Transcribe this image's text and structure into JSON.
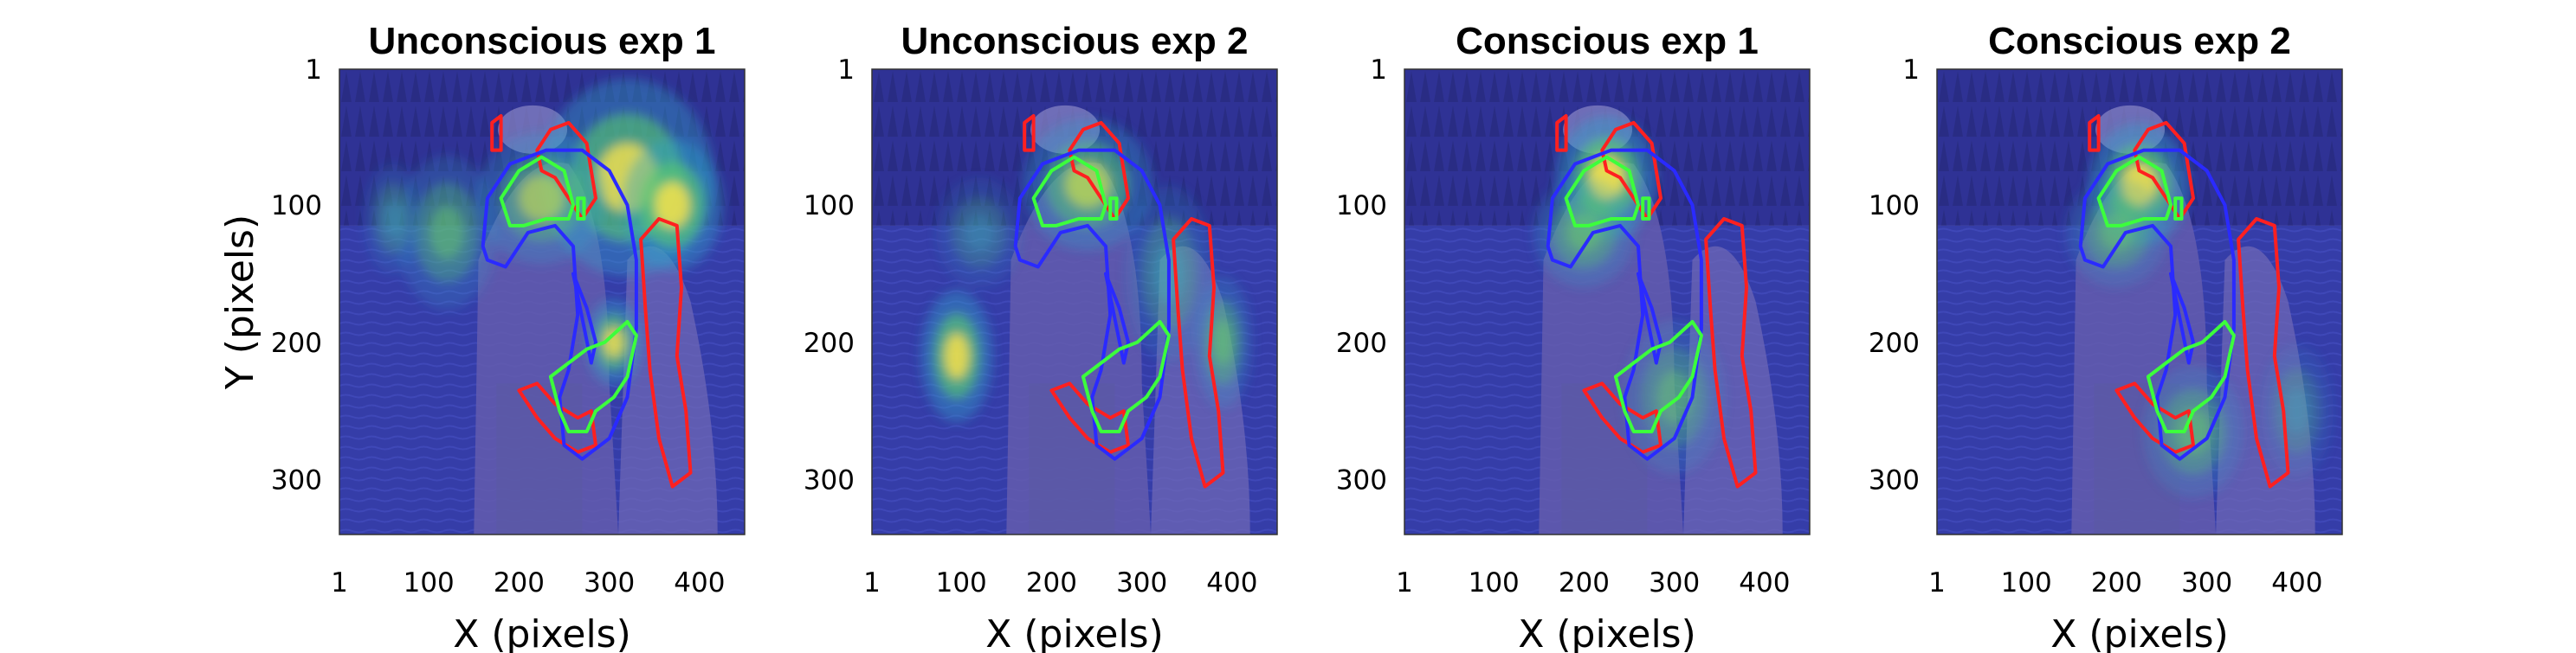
{
  "chart_data": {
    "type": "heatmap",
    "x_ticks": [
      "1",
      "100",
      "200",
      "300",
      "400"
    ],
    "y_ticks": [
      "1",
      "100",
      "200",
      "300"
    ],
    "xlim": [
      1,
      450
    ],
    "ylim": [
      1,
      340
    ],
    "xlabel": "X (pixels)",
    "ylabel": "Y (pixels)",
    "panels": [
      {
        "title": "Unconscious exp 1",
        "hotspots": [
          {
            "x": 320,
            "y": 80,
            "intensity": 0.85,
            "sx": 60,
            "sy": 45
          },
          {
            "x": 370,
            "y": 100,
            "intensity": 0.9,
            "sx": 35,
            "sy": 30
          },
          {
            "x": 225,
            "y": 95,
            "intensity": 0.6,
            "sx": 45,
            "sy": 30
          },
          {
            "x": 120,
            "y": 120,
            "intensity": 0.5,
            "sx": 35,
            "sy": 35
          },
          {
            "x": 305,
            "y": 200,
            "intensity": 0.85,
            "sx": 20,
            "sy": 20
          },
          {
            "x": 60,
            "y": 110,
            "intensity": 0.35,
            "sx": 20,
            "sy": 25
          }
        ]
      },
      {
        "title": "Unconscious exp 2",
        "hotspots": [
          {
            "x": 95,
            "y": 210,
            "intensity": 0.9,
            "sx": 25,
            "sy": 30
          },
          {
            "x": 240,
            "y": 85,
            "intensity": 0.7,
            "sx": 45,
            "sy": 30
          },
          {
            "x": 390,
            "y": 200,
            "intensity": 0.55,
            "sx": 20,
            "sy": 30
          },
          {
            "x": 330,
            "y": 150,
            "intensity": 0.4,
            "sx": 30,
            "sy": 40
          },
          {
            "x": 120,
            "y": 120,
            "intensity": 0.3,
            "sx": 30,
            "sy": 25
          }
        ]
      },
      {
        "title": "Conscious exp 1",
        "hotspots": [
          {
            "x": 225,
            "y": 80,
            "intensity": 0.95,
            "sx": 35,
            "sy": 28
          },
          {
            "x": 200,
            "y": 120,
            "intensity": 0.55,
            "sx": 35,
            "sy": 25
          },
          {
            "x": 300,
            "y": 240,
            "intensity": 0.45,
            "sx": 35,
            "sy": 35
          }
        ]
      },
      {
        "title": "Conscious exp 2",
        "hotspots": [
          {
            "x": 225,
            "y": 85,
            "intensity": 0.9,
            "sx": 35,
            "sy": 28
          },
          {
            "x": 200,
            "y": 120,
            "intensity": 0.5,
            "sx": 35,
            "sy": 25
          },
          {
            "x": 285,
            "y": 265,
            "intensity": 0.5,
            "sx": 35,
            "sy": 30
          },
          {
            "x": 400,
            "y": 250,
            "intensity": 0.3,
            "sx": 25,
            "sy": 30
          }
        ]
      }
    ],
    "contours": [
      {
        "color": "#ff2020",
        "points": [
          [
            170,
            50
          ],
          [
            170,
            40
          ],
          [
            180,
            35
          ],
          [
            180,
            60
          ],
          [
            170,
            60
          ]
        ]
      },
      {
        "color": "#ff2020",
        "points": [
          [
            220,
            60
          ],
          [
            235,
            45
          ],
          [
            255,
            40
          ],
          [
            275,
            55
          ],
          [
            285,
            95
          ],
          [
            270,
            110
          ],
          [
            255,
            95
          ],
          [
            240,
            80
          ],
          [
            225,
            75
          ]
        ]
      },
      {
        "color": "#ff2020",
        "points": [
          [
            335,
            125
          ],
          [
            355,
            110
          ],
          [
            375,
            115
          ],
          [
            380,
            160
          ],
          [
            375,
            210
          ],
          [
            385,
            250
          ],
          [
            390,
            295
          ],
          [
            370,
            305
          ],
          [
            355,
            270
          ],
          [
            345,
            220
          ],
          [
            340,
            175
          ]
        ]
      },
      {
        "color": "#ff2020",
        "points": [
          [
            200,
            235
          ],
          [
            220,
            230
          ],
          [
            240,
            245
          ],
          [
            265,
            255
          ],
          [
            280,
            250
          ],
          [
            285,
            275
          ],
          [
            265,
            280
          ],
          [
            240,
            270
          ],
          [
            220,
            255
          ]
        ]
      },
      {
        "color": "#2a2aff",
        "points": [
          [
            160,
            130
          ],
          [
            165,
            95
          ],
          [
            190,
            70
          ],
          [
            230,
            60
          ],
          [
            270,
            60
          ],
          [
            300,
            75
          ],
          [
            320,
            100
          ],
          [
            330,
            140
          ],
          [
            330,
            190
          ],
          [
            320,
            240
          ],
          [
            300,
            270
          ],
          [
            270,
            285
          ],
          [
            250,
            275
          ],
          [
            245,
            240
          ],
          [
            255,
            220
          ],
          [
            265,
            180
          ],
          [
            260,
            130
          ],
          [
            240,
            115
          ],
          [
            210,
            120
          ],
          [
            185,
            145
          ],
          [
            165,
            140
          ]
        ]
      },
      {
        "color": "#2a2aff",
        "points": [
          [
            260,
            150
          ],
          [
            275,
            175
          ],
          [
            285,
            200
          ],
          [
            280,
            215
          ]
        ]
      },
      {
        "color": "#3cff3c",
        "points": [
          [
            180,
            95
          ],
          [
            200,
            75
          ],
          [
            225,
            65
          ],
          [
            250,
            75
          ],
          [
            260,
            100
          ],
          [
            255,
            110
          ],
          [
            230,
            110
          ],
          [
            205,
            115
          ],
          [
            190,
            115
          ]
        ]
      },
      {
        "color": "#3cff3c",
        "points": [
          [
            265,
            95
          ],
          [
            272,
            95
          ],
          [
            272,
            110
          ],
          [
            265,
            110
          ]
        ]
      },
      {
        "color": "#3cff3c",
        "points": [
          [
            235,
            225
          ],
          [
            255,
            215
          ],
          [
            275,
            205
          ],
          [
            295,
            200
          ],
          [
            320,
            185
          ],
          [
            330,
            195
          ],
          [
            320,
            225
          ],
          [
            305,
            240
          ],
          [
            285,
            250
          ],
          [
            275,
            265
          ],
          [
            255,
            265
          ],
          [
            245,
            250
          ]
        ]
      }
    ]
  }
}
